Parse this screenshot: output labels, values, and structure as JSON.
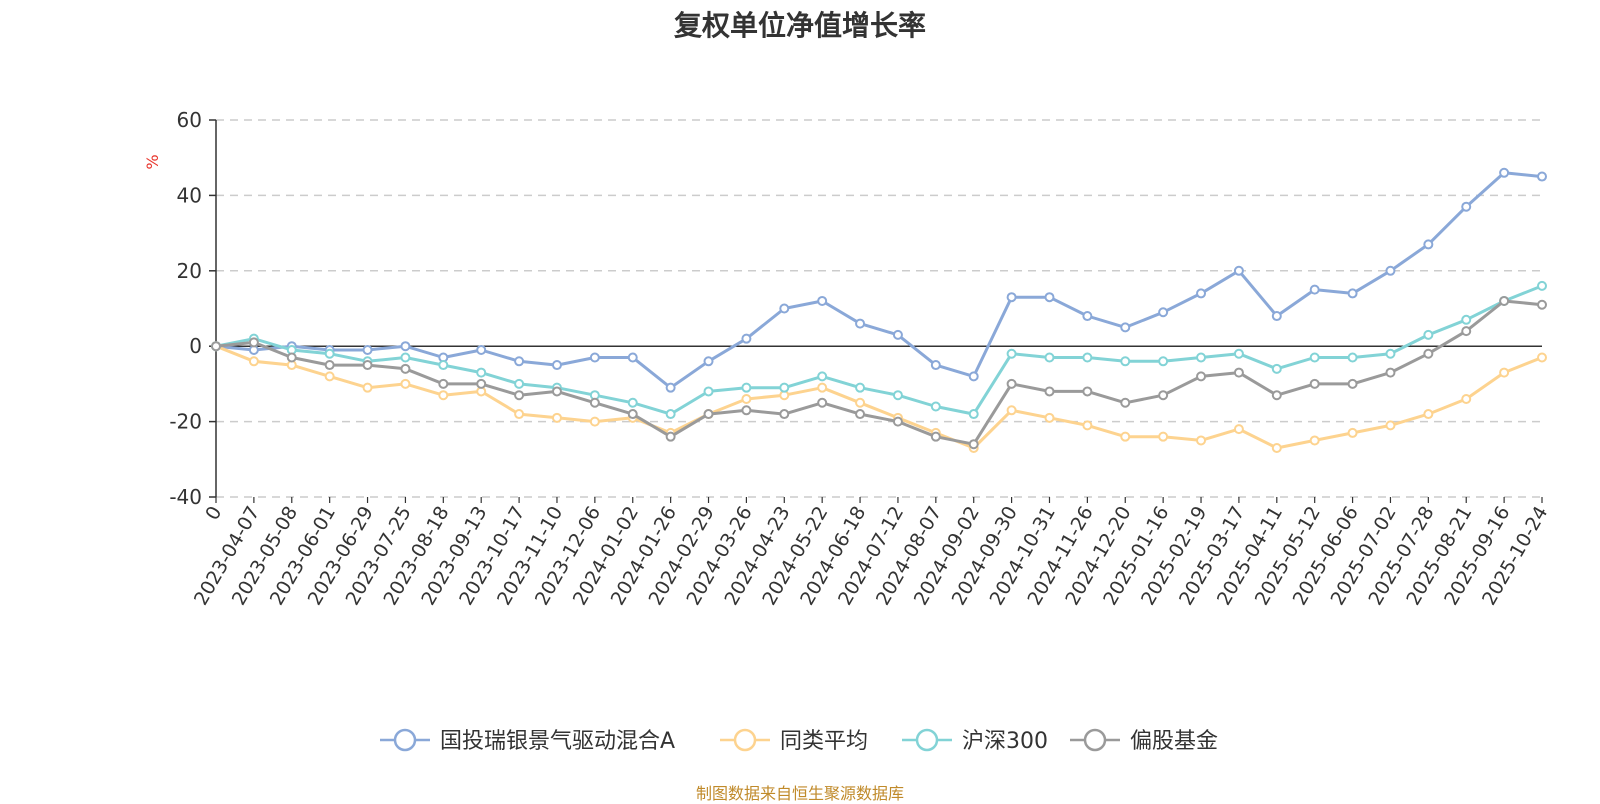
{
  "footer": {
    "source": "制图数据来自恒生聚源数据库"
  },
  "chart_data": {
    "type": "line",
    "title": "复权单位净值增长率",
    "ylabel": "%",
    "ylim": [
      -40,
      60
    ],
    "yticks": [
      60,
      40,
      20,
      0,
      -20,
      -40
    ],
    "grid": true,
    "legend_position": "bottom",
    "x_labels": [
      "0",
      "2023-04-07",
      "2023-05-08",
      "2023-06-01",
      "2023-06-29",
      "2023-07-25",
      "2023-08-18",
      "2023-09-13",
      "2023-10-17",
      "2023-11-10",
      "2023-12-06",
      "2024-01-02",
      "2024-01-26",
      "2024-02-29",
      "2024-03-26",
      "2024-04-23",
      "2024-05-22",
      "2024-06-18",
      "2024-07-12",
      "2024-08-07",
      "2024-09-02",
      "2024-09-30",
      "2024-10-31",
      "2024-11-26",
      "2024-12-20",
      "2025-01-16",
      "2025-02-19",
      "2025-03-17",
      "2025-04-11",
      "2025-05-12",
      "2025-06-06",
      "2025-07-02",
      "2025-07-28",
      "2025-08-21",
      "2025-09-16",
      "2025-10-24"
    ],
    "series": [
      {
        "name": "国投瑞银景气驱动混合A",
        "color": "#8aa8d8",
        "values": [
          0,
          -1,
          0,
          -1,
          -1,
          0,
          -3,
          -1,
          -4,
          -5,
          -3,
          -3,
          -11,
          -4,
          2,
          10,
          12,
          6,
          3,
          -5,
          -8,
          13,
          13,
          8,
          5,
          9,
          14,
          20,
          8,
          15,
          14,
          20,
          27,
          37,
          46,
          45
        ]
      },
      {
        "name": "同类平均",
        "color": "#fdd38f",
        "values": [
          0,
          -4,
          -5,
          -8,
          -11,
          -10,
          -13,
          -12,
          -18,
          -19,
          -20,
          -19,
          -23,
          -18,
          -14,
          -13,
          -11,
          -15,
          -19,
          -23,
          -27,
          -17,
          -19,
          -21,
          -24,
          -24,
          -25,
          -22,
          -27,
          -25,
          -23,
          -21,
          -18,
          -14,
          -7,
          -3
        ]
      },
      {
        "name": "沪深300",
        "color": "#82d3d6",
        "values": [
          0,
          2,
          -1,
          -2,
          -4,
          -3,
          -5,
          -7,
          -10,
          -11,
          -13,
          -15,
          -18,
          -12,
          -11,
          -11,
          -8,
          -11,
          -13,
          -16,
          -18,
          -2,
          -3,
          -3,
          -4,
          -4,
          -3,
          -2,
          -6,
          -3,
          -3,
          -2,
          3,
          7,
          12,
          16
        ]
      },
      {
        "name": "偏股基金",
        "color": "#9a9a9a",
        "values": [
          0,
          1,
          -3,
          -5,
          -5,
          -6,
          -10,
          -10,
          -13,
          -12,
          -15,
          -18,
          -24,
          -18,
          -17,
          -18,
          -15,
          -18,
          -20,
          -24,
          -26,
          -10,
          -12,
          -12,
          -15,
          -13,
          -8,
          -7,
          -13,
          -10,
          -10,
          -7,
          -2,
          4,
          12,
          11
        ]
      }
    ]
  }
}
